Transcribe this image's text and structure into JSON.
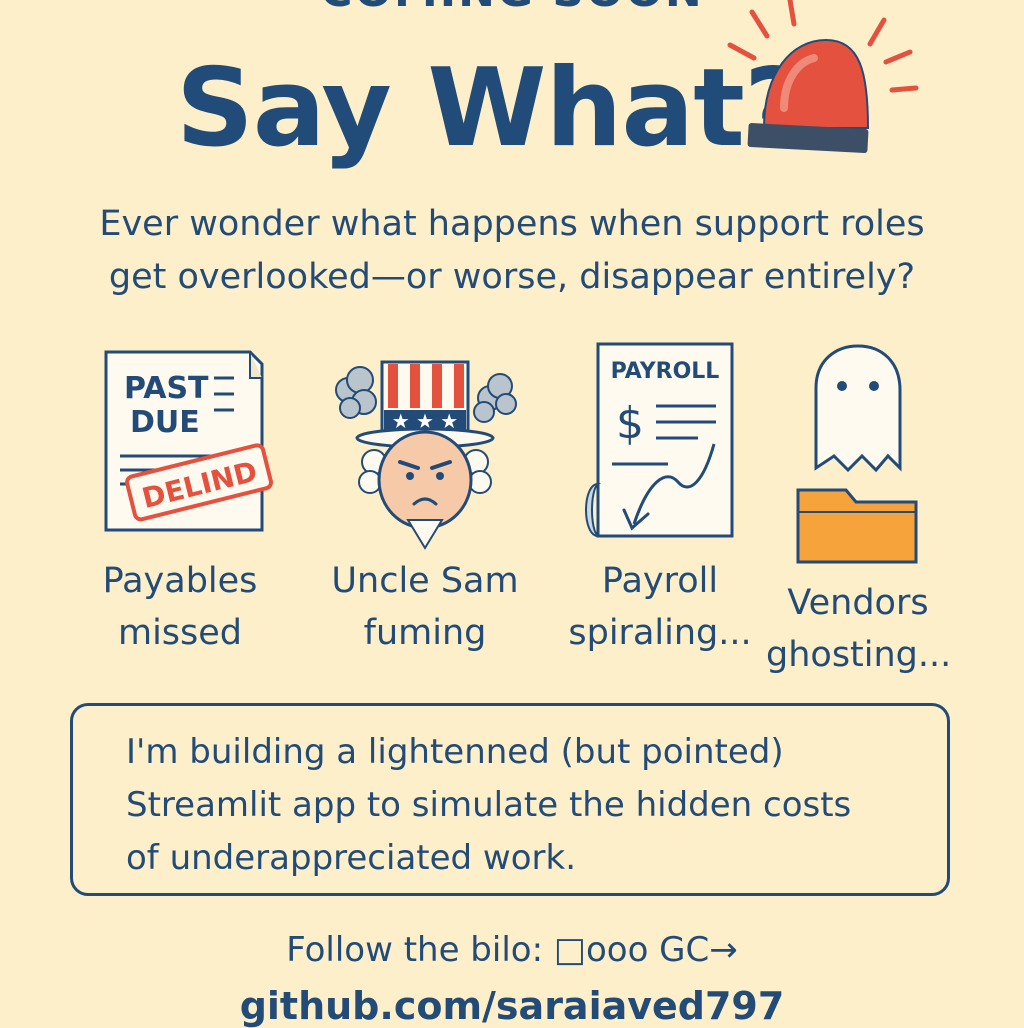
{
  "header": {
    "eyebrow": "COMING SOON",
    "title": "Say What?"
  },
  "subtitle": {
    "line1": "Ever wonder what happens when support roles",
    "line2": "get overlooked—or worse, disappear entirely?"
  },
  "cards": [
    {
      "icon": "past-due-invoice-icon",
      "doc_text_1": "PAST",
      "doc_text_2": "DUE",
      "stamp": "DELIND",
      "line1": "Payables",
      "line2": "missed"
    },
    {
      "icon": "uncle-sam-icon",
      "line1": "Uncle Sam",
      "line2": "fuming"
    },
    {
      "icon": "payroll-document-icon",
      "doc_text": "PAYROLL",
      "line1": "Payroll",
      "line2": "spiraling..."
    },
    {
      "icon": "ghost-folder-icon",
      "line1": "Vendors",
      "line2": "ghosting..."
    }
  ],
  "message": {
    "line1": "I'm building a lightenned (but pointed)",
    "line2": "Streamlit app to simulate the hidden costs",
    "line3": "of underappreciated work."
  },
  "footer": {
    "follow_label": "Follow the bilo:",
    "follow_glyphs": "□ooo GC→",
    "github": "github.com/saraiaved797"
  },
  "colors": {
    "background": "#fdefc9",
    "navy": "#234b78",
    "red": "#e5513f",
    "orange": "#f5a33a"
  }
}
